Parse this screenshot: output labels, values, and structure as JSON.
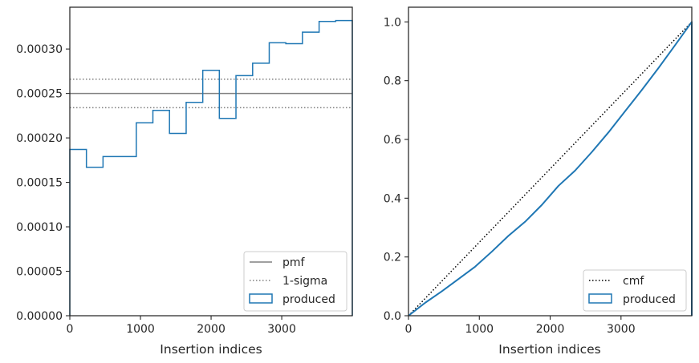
{
  "chart_data": [
    {
      "type": "line",
      "xlabel": "Insertion indices",
      "ylabel": "",
      "xlim": [
        0,
        3999
      ],
      "ylim": [
        0,
        0.000347
      ],
      "x_ticks": [
        0,
        1000,
        2000,
        3000
      ],
      "x_tick_labels": [
        "0",
        "1000",
        "2000",
        "3000"
      ],
      "y_ticks": [
        0,
        5e-05,
        0.0001,
        0.00015,
        0.0002,
        0.00025,
        0.0003
      ],
      "y_tick_labels": [
        "0.00000",
        "0.00005",
        "0.00010",
        "0.00015",
        "0.00020",
        "0.00025",
        "0.00030"
      ],
      "grid": false,
      "legend_position": "bottom-right",
      "series": [
        {
          "name": "pmf",
          "style": "solid",
          "color": "#808080",
          "y": 0.00025
        },
        {
          "name": "1-sigma",
          "style": "dotted",
          "color": "#808080",
          "y": [
            0.000234,
            0.000266
          ]
        },
        {
          "name": "produced",
          "style": "step-histogram",
          "color": "#1f77b4",
          "bin_edges": [
            0,
            235,
            470,
            706,
            941,
            1176,
            1411,
            1647,
            1882,
            2117,
            2352,
            2588,
            2823,
            3058,
            3293,
            3529,
            3764,
            3999
          ],
          "values": [
            0.000187,
            0.000167,
            0.000179,
            0.000179,
            0.000217,
            0.000231,
            0.000205,
            0.00024,
            0.000276,
            0.000222,
            0.00027,
            0.000284,
            0.000307,
            0.000306,
            0.000319,
            0.000331,
            0.000332
          ]
        }
      ]
    },
    {
      "type": "line",
      "xlabel": "Insertion indices",
      "ylabel": "",
      "xlim": [
        0,
        3999
      ],
      "ylim": [
        0,
        1.05
      ],
      "x_ticks": [
        0,
        1000,
        2000,
        3000
      ],
      "x_tick_labels": [
        "0",
        "1000",
        "2000",
        "3000"
      ],
      "y_ticks": [
        0,
        0.2,
        0.4,
        0.6,
        0.8,
        1.0
      ],
      "y_tick_labels": [
        "0.0",
        "0.2",
        "0.4",
        "0.6",
        "0.8",
        "1.0"
      ],
      "grid": false,
      "legend_position": "bottom-right",
      "series": [
        {
          "name": "cmf",
          "style": "dotted",
          "color": "#000000",
          "x": [
            0,
            3999
          ],
          "y": [
            0,
            1.0
          ]
        },
        {
          "name": "produced",
          "style": "step-cumulative",
          "color": "#1f77b4",
          "x": [
            0,
            235,
            470,
            706,
            941,
            1176,
            1411,
            1647,
            1882,
            2117,
            2352,
            2588,
            2823,
            3058,
            3293,
            3529,
            3764,
            3999
          ],
          "y": [
            0,
            0.044,
            0.083,
            0.125,
            0.167,
            0.218,
            0.272,
            0.32,
            0.377,
            0.442,
            0.494,
            0.557,
            0.624,
            0.696,
            0.768,
            0.843,
            0.921,
            1.0
          ]
        }
      ]
    }
  ]
}
